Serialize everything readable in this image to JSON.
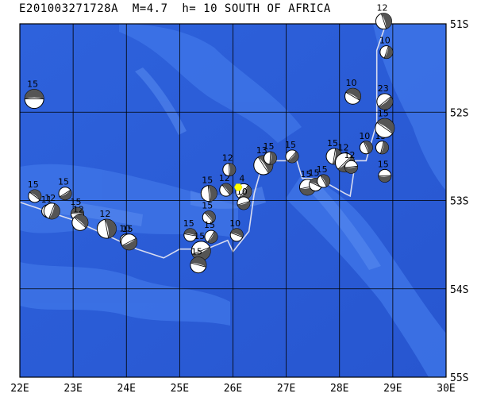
{
  "title": "E201003271728A  M=4.7  h= 10 SOUTH OF AFRICA",
  "x_ticks": [
    "22E",
    "23E",
    "24E",
    "25E",
    "26E",
    "27E",
    "28E",
    "29E",
    "30E"
  ],
  "y_ticks": [
    "51S",
    "52S",
    "53S",
    "54S",
    "55S"
  ],
  "colors": {
    "ocean_deep": "#2a5ad8",
    "ocean_mid": "#2f66e0",
    "ridge": "#4a80e8",
    "grid": "#000000",
    "plate_boundary": "#d8dcf0",
    "event": "#ffff00",
    "mech_dark": "#555555"
  },
  "epicenter": {
    "lon": 26.1,
    "lat": 52.85
  },
  "plate_boundary": [
    [
      22.0,
      53.02
    ],
    [
      23.0,
      53.22
    ],
    [
      24.2,
      53.55
    ],
    [
      24.7,
      53.65
    ],
    [
      25.0,
      53.55
    ],
    [
      25.5,
      53.55
    ],
    [
      25.9,
      53.45
    ],
    [
      26.0,
      53.58
    ],
    [
      26.3,
      53.35
    ],
    [
      26.4,
      52.92
    ],
    [
      26.5,
      52.7
    ],
    [
      26.7,
      52.55
    ],
    [
      27.2,
      52.55
    ],
    [
      27.3,
      52.75
    ],
    [
      27.6,
      52.75
    ],
    [
      28.1,
      52.92
    ],
    [
      28.2,
      52.95
    ],
    [
      28.3,
      52.55
    ],
    [
      28.5,
      52.55
    ],
    [
      28.7,
      52.12
    ],
    [
      28.7,
      51.3
    ],
    [
      28.9,
      50.95
    ]
  ],
  "mechanisms": [
    {
      "lon": 22.27,
      "lat": 51.85,
      "label": "15"
    },
    {
      "lon": 22.28,
      "lat": 52.95,
      "label": "15"
    },
    {
      "lon": 22.53,
      "lat": 53.12,
      "label": "11"
    },
    {
      "lon": 22.6,
      "lat": 53.12,
      "label": "12"
    },
    {
      "lon": 22.85,
      "lat": 52.92,
      "label": "15"
    },
    {
      "lon": 23.08,
      "lat": 53.15,
      "label": "15"
    },
    {
      "lon": 23.13,
      "lat": 53.25,
      "label": "12"
    },
    {
      "lon": 23.63,
      "lat": 53.32,
      "label": "12"
    },
    {
      "lon": 24.0,
      "lat": 53.45,
      "label": "10"
    },
    {
      "lon": 24.05,
      "lat": 53.47,
      "label": "15"
    },
    {
      "lon": 25.2,
      "lat": 53.39,
      "label": "15"
    },
    {
      "lon": 25.55,
      "lat": 53.19,
      "label": "15"
    },
    {
      "lon": 25.55,
      "lat": 52.92,
      "label": "15"
    },
    {
      "lon": 25.59,
      "lat": 53.41,
      "label": "15"
    },
    {
      "lon": 25.4,
      "lat": 53.57,
      "label": "15"
    },
    {
      "lon": 25.35,
      "lat": 53.73,
      "label": "15"
    },
    {
      "lon": 25.87,
      "lat": 52.88,
      "label": "12"
    },
    {
      "lon": 25.93,
      "lat": 52.65,
      "label": "12"
    },
    {
      "lon": 26.2,
      "lat": 52.9,
      "label": "4"
    },
    {
      "lon": 26.2,
      "lat": 53.03,
      "label": "10"
    },
    {
      "lon": 26.07,
      "lat": 53.39,
      "label": "10"
    },
    {
      "lon": 26.57,
      "lat": 52.6,
      "label": "13"
    },
    {
      "lon": 26.7,
      "lat": 52.52,
      "label": "15"
    },
    {
      "lon": 27.11,
      "lat": 52.5,
      "label": "15"
    },
    {
      "lon": 27.4,
      "lat": 52.85,
      "label": "15"
    },
    {
      "lon": 27.55,
      "lat": 52.82,
      "label": "15"
    },
    {
      "lon": 27.7,
      "lat": 52.78,
      "label": "15"
    },
    {
      "lon": 27.9,
      "lat": 52.5,
      "label": "15"
    },
    {
      "lon": 28.1,
      "lat": 52.57,
      "label": "12"
    },
    {
      "lon": 28.22,
      "lat": 52.62,
      "label": "12"
    },
    {
      "lon": 28.25,
      "lat": 51.82,
      "label": "10"
    },
    {
      "lon": 28.5,
      "lat": 52.4,
      "label": "10"
    },
    {
      "lon": 28.8,
      "lat": 52.4,
      "label": "15"
    },
    {
      "lon": 28.85,
      "lat": 51.88,
      "label": "23"
    },
    {
      "lon": 28.85,
      "lat": 52.72,
      "label": "15"
    },
    {
      "lon": 28.85,
      "lat": 52.18,
      "label": "15"
    },
    {
      "lon": 28.83,
      "lat": 50.97,
      "label": "12"
    },
    {
      "lon": 28.88,
      "lat": 51.32,
      "label": "10"
    }
  ]
}
